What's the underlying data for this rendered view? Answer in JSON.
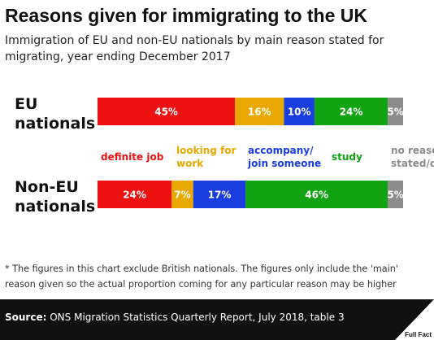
{
  "header": {
    "title": "Reasons given for immigrating to the UK",
    "subtitle": "Immigration of EU and non-EU nationals by main reason stated for migrating, year ending December 2017"
  },
  "chart_data": {
    "type": "bar",
    "orientation": "horizontal",
    "stacked": true,
    "unit": "%",
    "categories": [
      [
        "EU",
        "nationals"
      ],
      [
        "Non-EU",
        "nationals"
      ]
    ],
    "series": [
      {
        "name": "definite job",
        "label_lines": [
          "definite job"
        ],
        "color": "#ee1111",
        "values": [
          45,
          24
        ]
      },
      {
        "name": "looking for work",
        "label_lines": [
          "looking for",
          "work"
        ],
        "color": "#e8a800",
        "values": [
          16,
          7
        ]
      },
      {
        "name": "accompany/ join someone",
        "label_lines": [
          "accompany/",
          "join someone"
        ],
        "color": "#1a3de0",
        "values": [
          10,
          17
        ]
      },
      {
        "name": "study",
        "label_lines": [
          "study"
        ],
        "color": "#11a311",
        "values": [
          24,
          46
        ]
      },
      {
        "name": "no reason stated/other",
        "label_lines": [
          "no reason",
          "stated/other"
        ],
        "color": "#8c8c8c",
        "values": [
          5,
          5
        ]
      }
    ],
    "data_labels": [
      [
        "45%",
        "16%",
        "10%",
        "24%",
        "5%"
      ],
      [
        "24%",
        "7%",
        "17%",
        "46%",
        "5%"
      ]
    ],
    "legend_position": "between-bars",
    "grid": false
  },
  "footnote": "* The figures in this chart exclude British nationals. The figures only include the 'main' reason given so the actual proportion coming for any particular reason may be higher",
  "source": {
    "label": "Source:",
    "text": "ONS Migration Statistics Quarterly Report, July 2018, table 3"
  },
  "logo": {
    "text": "Full Fact"
  }
}
